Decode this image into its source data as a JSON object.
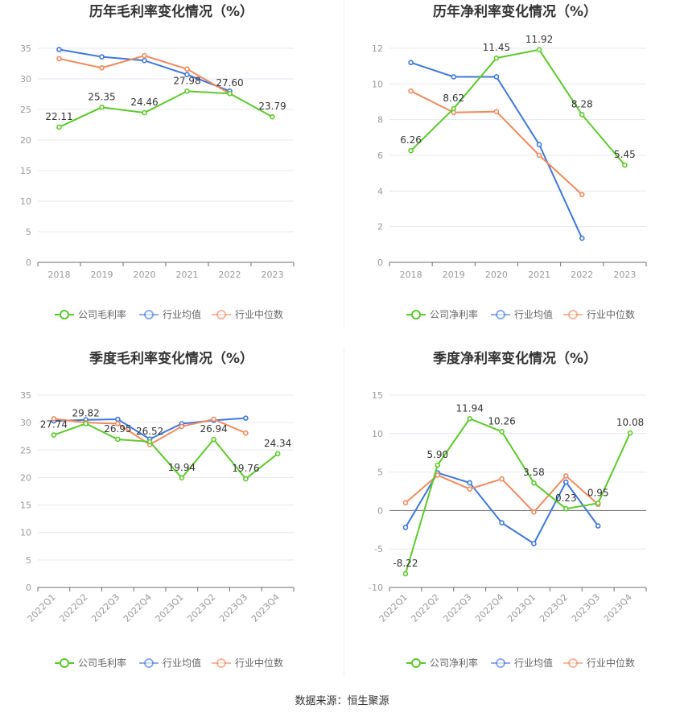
{
  "footer": "数据来源：恒生聚源",
  "colors": {
    "company": "#5cc92a",
    "industry_avg": "#3f77de",
    "industry_median": "#f08a5d"
  },
  "chart_data": [
    {
      "id": "annual-gross",
      "type": "line",
      "title": "历年毛利率变化情况（%）",
      "categories": [
        "2018",
        "2019",
        "2020",
        "2021",
        "2022",
        "2023"
      ],
      "ylim": [
        0,
        35
      ],
      "yticks": [
        0,
        5,
        10,
        15,
        20,
        25,
        30,
        35
      ],
      "rotate_labels": false,
      "series": [
        {
          "name": "公司毛利率",
          "color": "#5cc92a",
          "labels": true,
          "values": [
            22.11,
            25.35,
            24.46,
            27.98,
            27.6,
            23.79
          ]
        },
        {
          "name": "行业均值",
          "color": "#3f77de",
          "labels": false,
          "values": [
            34.8,
            33.6,
            33.0,
            30.7,
            28.0,
            null
          ]
        },
        {
          "name": "行业中位数",
          "color": "#f08a5d",
          "labels": false,
          "values": [
            33.3,
            31.8,
            33.8,
            31.6,
            27.6,
            null
          ]
        }
      ],
      "legend": [
        "公司毛利率",
        "行业均值",
        "行业中位数"
      ]
    },
    {
      "id": "annual-net",
      "type": "line",
      "title": "历年净利率变化情况（%）",
      "categories": [
        "2018",
        "2019",
        "2020",
        "2021",
        "2022",
        "2023"
      ],
      "ylim": [
        0,
        12
      ],
      "yticks": [
        0,
        2,
        4,
        6,
        8,
        10,
        12
      ],
      "rotate_labels": false,
      "series": [
        {
          "name": "公司净利率",
          "color": "#5cc92a",
          "labels": true,
          "values": [
            6.26,
            8.62,
            11.45,
            11.92,
            8.28,
            5.45
          ]
        },
        {
          "name": "行业均值",
          "color": "#3f77de",
          "labels": false,
          "values": [
            11.2,
            10.4,
            10.4,
            6.6,
            1.35,
            null
          ]
        },
        {
          "name": "行业中位数",
          "color": "#f08a5d",
          "labels": false,
          "values": [
            9.6,
            8.4,
            8.45,
            6.0,
            3.8,
            null
          ]
        }
      ],
      "legend": [
        "公司净利率",
        "行业均值",
        "行业中位数"
      ]
    },
    {
      "id": "quarterly-gross",
      "type": "line",
      "title": "季度毛利率变化情况（%）",
      "categories": [
        "2022Q1",
        "2022Q2",
        "2022Q3",
        "2022Q4",
        "2023Q1",
        "2023Q2",
        "2023Q3",
        "2023Q4"
      ],
      "ylim": [
        0,
        35
      ],
      "yticks": [
        0,
        5,
        10,
        15,
        20,
        25,
        30,
        35
      ],
      "rotate_labels": true,
      "series": [
        {
          "name": "公司毛利率",
          "color": "#5cc92a",
          "labels": true,
          "values": [
            27.74,
            29.82,
            26.95,
            26.52,
            19.94,
            26.94,
            19.76,
            24.34
          ]
        },
        {
          "name": "行业均值",
          "color": "#3f77de",
          "labels": false,
          "values": [
            30.3,
            30.5,
            30.6,
            27.0,
            29.8,
            30.4,
            30.8,
            null
          ]
        },
        {
          "name": "行业中位数",
          "color": "#f08a5d",
          "labels": false,
          "values": [
            30.7,
            30.0,
            29.8,
            26.0,
            29.3,
            30.6,
            28.1,
            null
          ]
        }
      ],
      "legend": [
        "公司毛利率",
        "行业均值",
        "行业中位数"
      ]
    },
    {
      "id": "quarterly-net",
      "type": "line",
      "title": "季度净利率变化情况（%）",
      "categories": [
        "2022Q1",
        "2022Q2",
        "2022Q3",
        "2022Q4",
        "2023Q1",
        "2023Q2",
        "2023Q3",
        "2023Q4"
      ],
      "ylim": [
        -10,
        15
      ],
      "yticks": [
        -10,
        -5,
        0,
        5,
        10,
        15
      ],
      "rotate_labels": true,
      "series": [
        {
          "name": "公司净利率",
          "color": "#5cc92a",
          "labels": true,
          "values": [
            -8.22,
            5.9,
            11.94,
            10.26,
            3.58,
            0.23,
            0.95,
            10.08
          ]
        },
        {
          "name": "行业均值",
          "color": "#3f77de",
          "labels": false,
          "values": [
            -2.2,
            4.9,
            3.6,
            -1.6,
            -4.3,
            3.7,
            -2.0,
            null
          ]
        },
        {
          "name": "行业中位数",
          "color": "#f08a5d",
          "labels": false,
          "values": [
            1.0,
            4.6,
            2.8,
            4.1,
            -0.2,
            4.5,
            0.8,
            null
          ]
        }
      ],
      "legend": [
        "公司净利率",
        "行业均值",
        "行业中位数"
      ]
    }
  ]
}
